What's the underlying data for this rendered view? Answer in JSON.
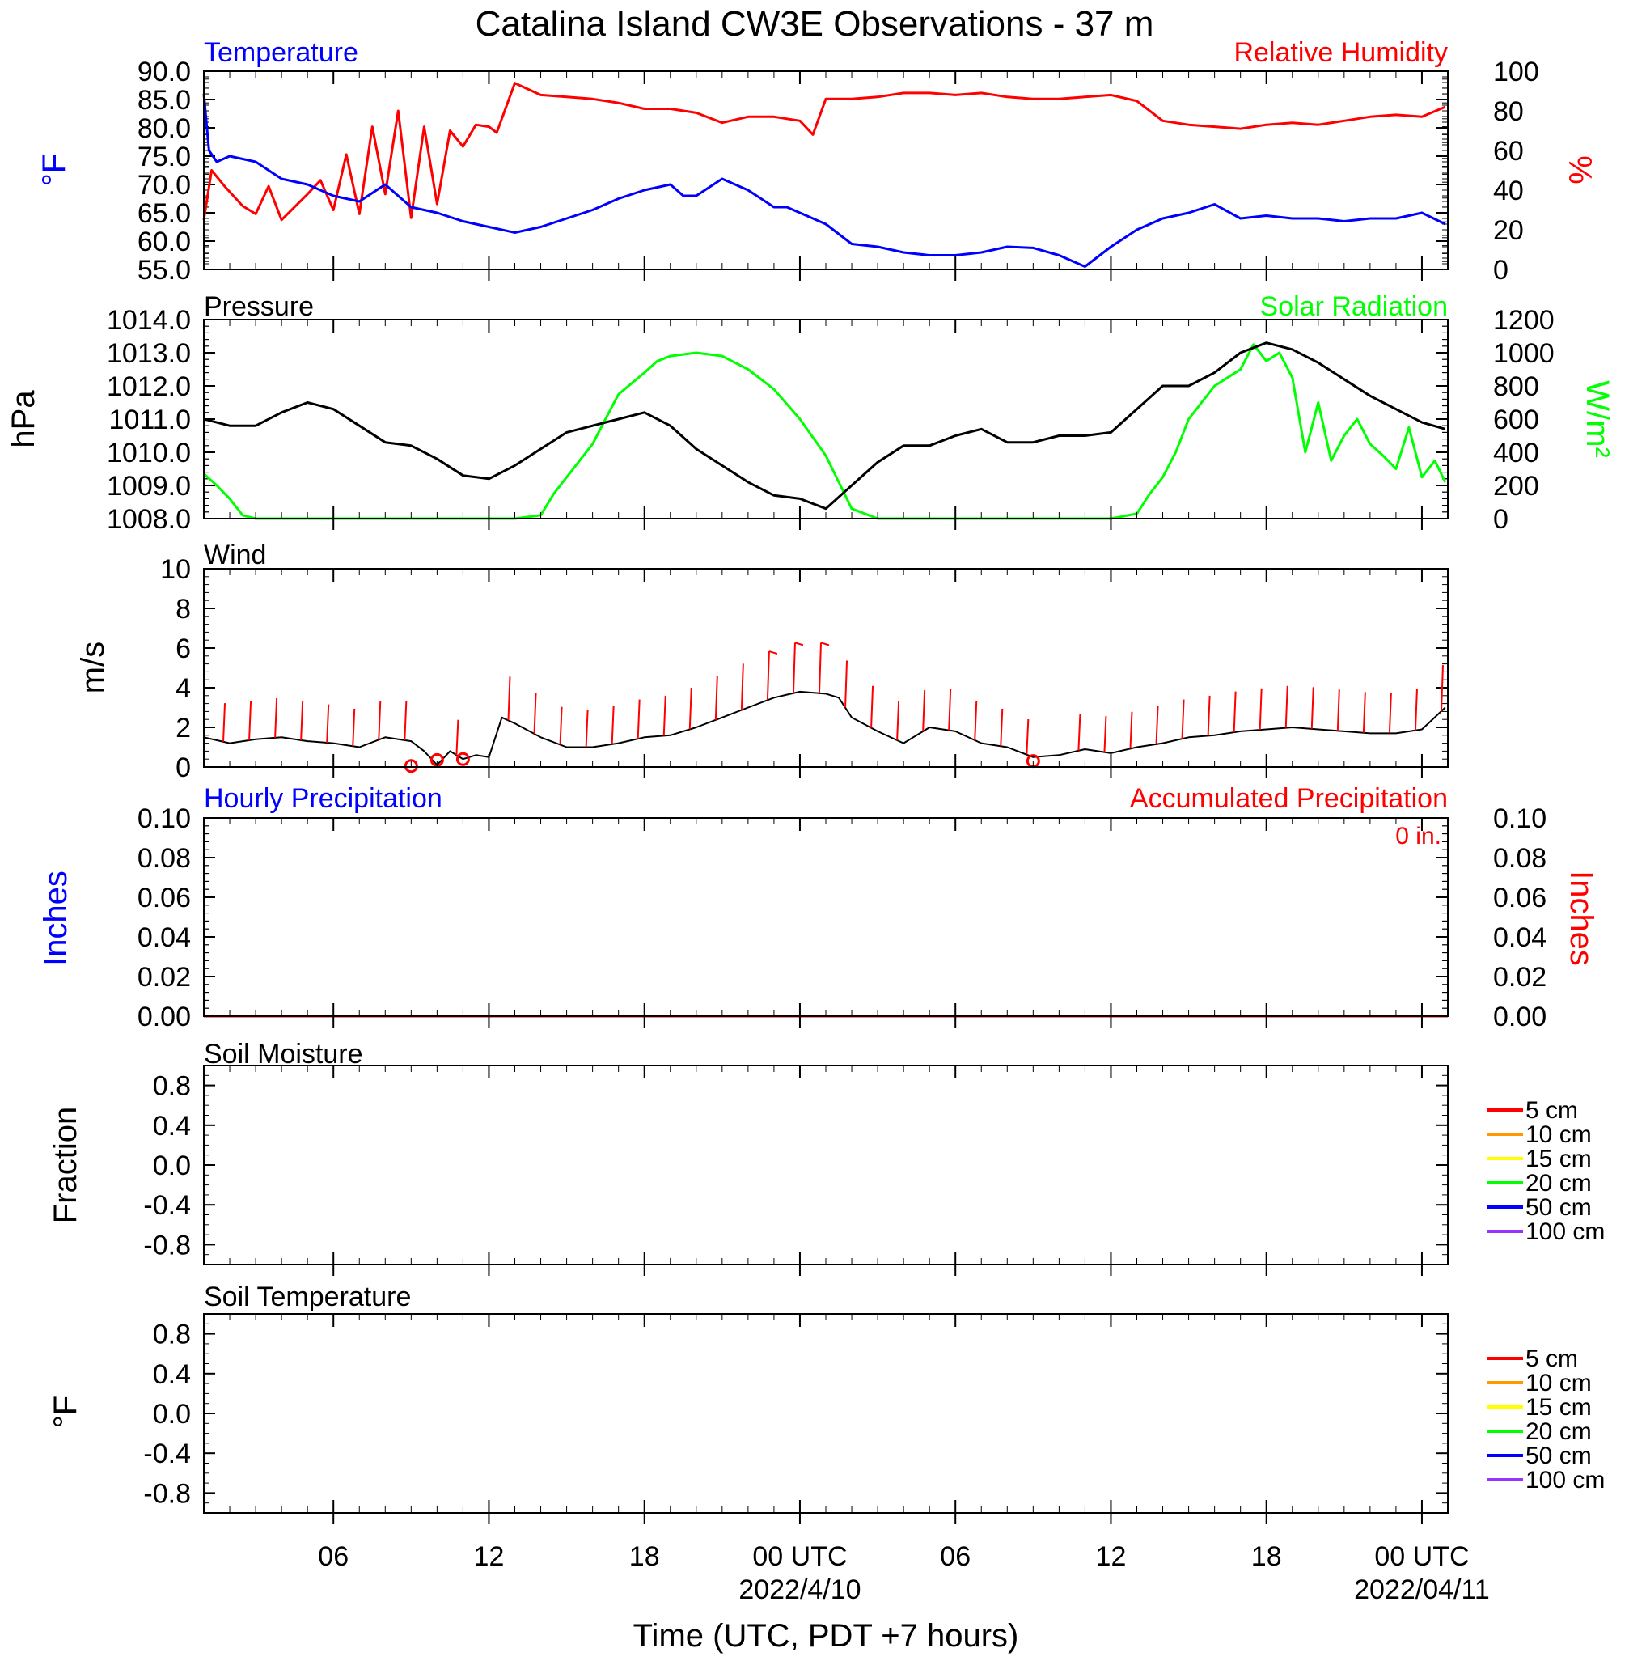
{
  "title": "Catalina Island CW3E Observations - 37 m",
  "x_axis": {
    "label": "Time (UTC, PDT +7 hours)",
    "range_hours": [
      0,
      48
    ],
    "ticks": [
      {
        "hour": 5,
        "label": "06",
        "sub": ""
      },
      {
        "hour": 11,
        "label": "12",
        "sub": ""
      },
      {
        "hour": 17,
        "label": "18",
        "sub": ""
      },
      {
        "hour": 23,
        "label": "00 UTC",
        "sub": "2022/4/10"
      },
      {
        "hour": 29,
        "label": "06",
        "sub": ""
      },
      {
        "hour": 35,
        "label": "12",
        "sub": ""
      },
      {
        "hour": 41,
        "label": "18",
        "sub": ""
      },
      {
        "hour": 47,
        "label": "00 UTC",
        "sub": "2022/04/11"
      }
    ]
  },
  "panels": {
    "temp_rh": {
      "left_title": "Temperature",
      "right_title": "Relative Humidity",
      "left_axis_label": "°F",
      "right_axis_label": "%",
      "left_ticks": [
        "90.0",
        "85.0",
        "80.0",
        "75.0",
        "70.0",
        "65.0",
        "60.0",
        "55.0"
      ],
      "right_ticks": [
        "100",
        "80",
        "60",
        "40",
        "20",
        "0"
      ]
    },
    "pressure_solar": {
      "left_title": "Pressure",
      "right_title": "Solar Radiation",
      "left_axis_label": "hPa",
      "right_axis_label": "W/m²",
      "left_ticks": [
        "1014.0",
        "1013.0",
        "1012.0",
        "1011.0",
        "1010.0",
        "1009.0",
        "1008.0"
      ],
      "right_ticks": [
        "1200",
        "1000",
        "800",
        "600",
        "400",
        "200",
        "0"
      ]
    },
    "wind": {
      "left_title": "Wind",
      "left_axis_label": "m/s",
      "left_ticks": [
        "10",
        "8",
        "6",
        "4",
        "2",
        "0"
      ]
    },
    "precip": {
      "left_title": "Hourly Precipitation",
      "right_title": "Accumulated Precipitation",
      "left_axis_label": "Inches",
      "right_axis_label": "Inches",
      "total_label": "0 in.",
      "left_ticks": [
        "0.10",
        "0.08",
        "0.06",
        "0.04",
        "0.02",
        "0.00"
      ],
      "right_ticks": [
        "0.10",
        "0.08",
        "0.06",
        "0.04",
        "0.02",
        "0.00"
      ]
    },
    "soil_moisture": {
      "left_title": "Soil Moisture",
      "left_axis_label": "Fraction",
      "left_ticks": [
        "0.8",
        "0.4",
        "0.0",
        "-0.4",
        "-0.8"
      ],
      "legend": [
        "5 cm",
        "10 cm",
        "15 cm",
        "20 cm",
        "50 cm",
        "100 cm"
      ]
    },
    "soil_temp": {
      "left_title": "Soil Temperature",
      "left_axis_label": "°F",
      "left_ticks": [
        "0.8",
        "0.4",
        "0.0",
        "-0.4",
        "-0.8"
      ],
      "legend": [
        "5 cm",
        "10 cm",
        "15 cm",
        "20 cm",
        "50 cm",
        "100 cm"
      ]
    }
  },
  "colors": {
    "temperature": "#0000ff",
    "humidity": "#ff0000",
    "pressure": "#000000",
    "solar": "#00ff00",
    "wind_speed": "#000000",
    "wind_barb": "#ff0000",
    "precip_hourly": "#0000ff",
    "precip_accum": "#ff0000",
    "soil_levels": [
      "#ff0000",
      "#ff9900",
      "#ffff00",
      "#00ff00",
      "#0000ff",
      "#9933ff"
    ]
  },
  "chart_data": [
    {
      "type": "line",
      "panel": "temp_rh",
      "x_unit": "hours since 2022-04-09 01 UTC",
      "ylim_left": [
        55,
        90
      ],
      "ylim_right": [
        0,
        100
      ],
      "series": [
        {
          "name": "Temperature",
          "axis": "left",
          "color": "#0000ff",
          "x": [
            0,
            0.2,
            0.5,
            1,
            2,
            3,
            4,
            5,
            6,
            7,
            8,
            9,
            10,
            11,
            12,
            13,
            14,
            15,
            16,
            17,
            18,
            18.5,
            19,
            20,
            21,
            22,
            22.5,
            23,
            24,
            25,
            26,
            27,
            28,
            29,
            30,
            31,
            32,
            33,
            34,
            35,
            36,
            36.5,
            37,
            38,
            39,
            40,
            41,
            42,
            43,
            44,
            45,
            46,
            47,
            47.9
          ],
          "y": [
            86,
            76,
            74,
            75,
            74,
            71,
            70,
            68,
            67,
            70,
            66,
            65,
            63.5,
            62.5,
            61.5,
            62.5,
            64,
            65.5,
            67.5,
            69,
            70,
            68,
            68,
            71,
            69,
            66,
            66,
            65,
            63,
            59.5,
            59,
            58,
            57.5,
            57.5,
            58,
            59,
            58.8,
            57.5,
            55.5,
            59,
            62,
            63,
            64,
            65,
            66.5,
            64,
            64.5,
            64,
            64,
            63.5,
            64,
            64,
            65,
            63
          ]
        },
        {
          "name": "Relative Humidity",
          "axis": "right",
          "color": "#ff0000",
          "x": [
            0,
            0.3,
            0.8,
            1.5,
            2,
            2.5,
            3,
            4,
            4.5,
            5,
            5.5,
            6,
            6.5,
            7,
            7.5,
            8,
            8.5,
            9,
            9.5,
            10,
            10.5,
            11,
            11.3,
            12,
            13,
            14,
            15,
            16,
            17,
            18,
            19,
            20,
            21,
            22,
            23,
            23.5,
            24,
            25,
            26,
            27,
            28,
            29,
            30,
            31,
            32,
            33,
            34,
            35,
            36,
            37,
            38,
            39,
            40,
            41,
            42,
            43,
            44,
            45,
            46,
            47,
            47.9
          ],
          "y": [
            25,
            50,
            42,
            32,
            28,
            42,
            25,
            38,
            45,
            30,
            58,
            28,
            72,
            38,
            80,
            26,
            72,
            33,
            70,
            62,
            73,
            72,
            69,
            94,
            88,
            87,
            86,
            84,
            81,
            81,
            79,
            74,
            77,
            77,
            75,
            68,
            86,
            86,
            87,
            89,
            89,
            88,
            89,
            87,
            86,
            86,
            87,
            88,
            85,
            75,
            73,
            72,
            71,
            73,
            74,
            73,
            75,
            77,
            78,
            77,
            82
          ]
        }
      ]
    },
    {
      "type": "line",
      "panel": "pressure_solar",
      "x_unit": "hours since 2022-04-09 01 UTC",
      "ylim_left": [
        1008,
        1014
      ],
      "ylim_right": [
        0,
        1200
      ],
      "series": [
        {
          "name": "Pressure",
          "axis": "left",
          "color": "#000000",
          "x": [
            0,
            1,
            2,
            3,
            4,
            5,
            6,
            7,
            8,
            9,
            10,
            11,
            12,
            13,
            14,
            15,
            16,
            17,
            18,
            19,
            20,
            21,
            22,
            23,
            24,
            25,
            26,
            27,
            28,
            29,
            30,
            31,
            32,
            33,
            34,
            35,
            36,
            37,
            38,
            39,
            40,
            41,
            42,
            43,
            44,
            45,
            46,
            47,
            47.9
          ],
          "y": [
            1011,
            1010.8,
            1010.8,
            1011.2,
            1011.5,
            1011.3,
            1010.8,
            1010.3,
            1010.2,
            1009.8,
            1009.3,
            1009.2,
            1009.6,
            1010.1,
            1010.6,
            1010.8,
            1011,
            1011.2,
            1010.8,
            1010.1,
            1009.6,
            1009.1,
            1008.7,
            1008.6,
            1008.3,
            1009,
            1009.7,
            1010.2,
            1010.2,
            1010.5,
            1010.7,
            1010.3,
            1010.3,
            1010.5,
            1010.5,
            1010.6,
            1011.3,
            1012,
            1012,
            1012.4,
            1013,
            1013.3,
            1013.1,
            1012.7,
            1012.2,
            1011.7,
            1011.3,
            1010.9,
            1010.7
          ]
        },
        {
          "name": "Solar Radiation",
          "axis": "right",
          "color": "#00ff00",
          "x": [
            0,
            0.5,
            1,
            1.5,
            2,
            3,
            4,
            5,
            6,
            7,
            8,
            9,
            10,
            11,
            12,
            13,
            13.5,
            14,
            15,
            15.5,
            16,
            17,
            17.5,
            18,
            19,
            20,
            21,
            22,
            23,
            24,
            24.5,
            25,
            26,
            27,
            28,
            29,
            30,
            31,
            32,
            33,
            34,
            35,
            36,
            36.5,
            37,
            37.5,
            38,
            39,
            40,
            40.5,
            41,
            41.5,
            42,
            42.5,
            43,
            43.5,
            44,
            44.5,
            45,
            45.5,
            46,
            46.5,
            47,
            47.5,
            47.9
          ],
          "y": [
            270,
            200,
            120,
            20,
            0,
            0,
            0,
            0,
            0,
            0,
            0,
            0,
            0,
            0,
            0,
            20,
            150,
            250,
            450,
            600,
            750,
            880,
            950,
            980,
            1000,
            980,
            900,
            780,
            600,
            380,
            220,
            60,
            0,
            0,
            0,
            0,
            0,
            0,
            0,
            0,
            0,
            0,
            30,
            150,
            250,
            400,
            600,
            800,
            900,
            1050,
            950,
            1000,
            850,
            400,
            700,
            350,
            500,
            600,
            450,
            380,
            300,
            550,
            250,
            350,
            220
          ]
        }
      ]
    },
    {
      "type": "line",
      "panel": "wind",
      "x_unit": "hours since 2022-04-09 01 UTC",
      "ylim": [
        0,
        10
      ],
      "series": [
        {
          "name": "Wind",
          "color": "#000000",
          "x": [
            0,
            1,
            2,
            3,
            4,
            5,
            6,
            7,
            8,
            8.5,
            9,
            9.5,
            10,
            10.5,
            11,
            11.5,
            12,
            13,
            14,
            15,
            16,
            17,
            18,
            19,
            20,
            21,
            22,
            23,
            24,
            24.5,
            25,
            26,
            27,
            28,
            29,
            30,
            31,
            32,
            33,
            34,
            35,
            36,
            37,
            38,
            39,
            40,
            41,
            42,
            43,
            44,
            45,
            46,
            47,
            47.9
          ],
          "y": [
            1.5,
            1.2,
            1.4,
            1.5,
            1.3,
            1.2,
            1.0,
            1.5,
            1.3,
            0.8,
            0.1,
            0.8,
            0.4,
            0.6,
            0.5,
            2.5,
            2.2,
            1.5,
            1.0,
            1.0,
            1.2,
            1.5,
            1.6,
            2.0,
            2.5,
            3.0,
            3.5,
            3.8,
            3.7,
            3.5,
            2.5,
            1.8,
            1.2,
            2.0,
            1.8,
            1.2,
            1.0,
            0.5,
            0.6,
            0.9,
            0.7,
            1.0,
            1.2,
            1.5,
            1.6,
            1.8,
            1.9,
            2.0,
            1.9,
            1.8,
            1.7,
            1.7,
            1.9,
            3.0
          ]
        },
        {
          "name": "Calm",
          "color": "#ff0000",
          "x": [
            8,
            9,
            10,
            32
          ],
          "y": [
            0.05,
            0.35,
            0.4,
            0.3
          ]
        }
      ]
    },
    {
      "type": "line",
      "panel": "precip",
      "x_unit": "hours since 2022-04-09 01 UTC",
      "ylim": [
        0,
        0.1
      ],
      "series": [
        {
          "name": "Hourly Precipitation",
          "color": "#0000ff",
          "x": [
            0,
            48
          ],
          "y": [
            0,
            0
          ]
        },
        {
          "name": "Accumulated Precipitation",
          "color": "#ff0000",
          "x": [
            0,
            48
          ],
          "y": [
            0,
            0
          ]
        }
      ]
    }
  ]
}
